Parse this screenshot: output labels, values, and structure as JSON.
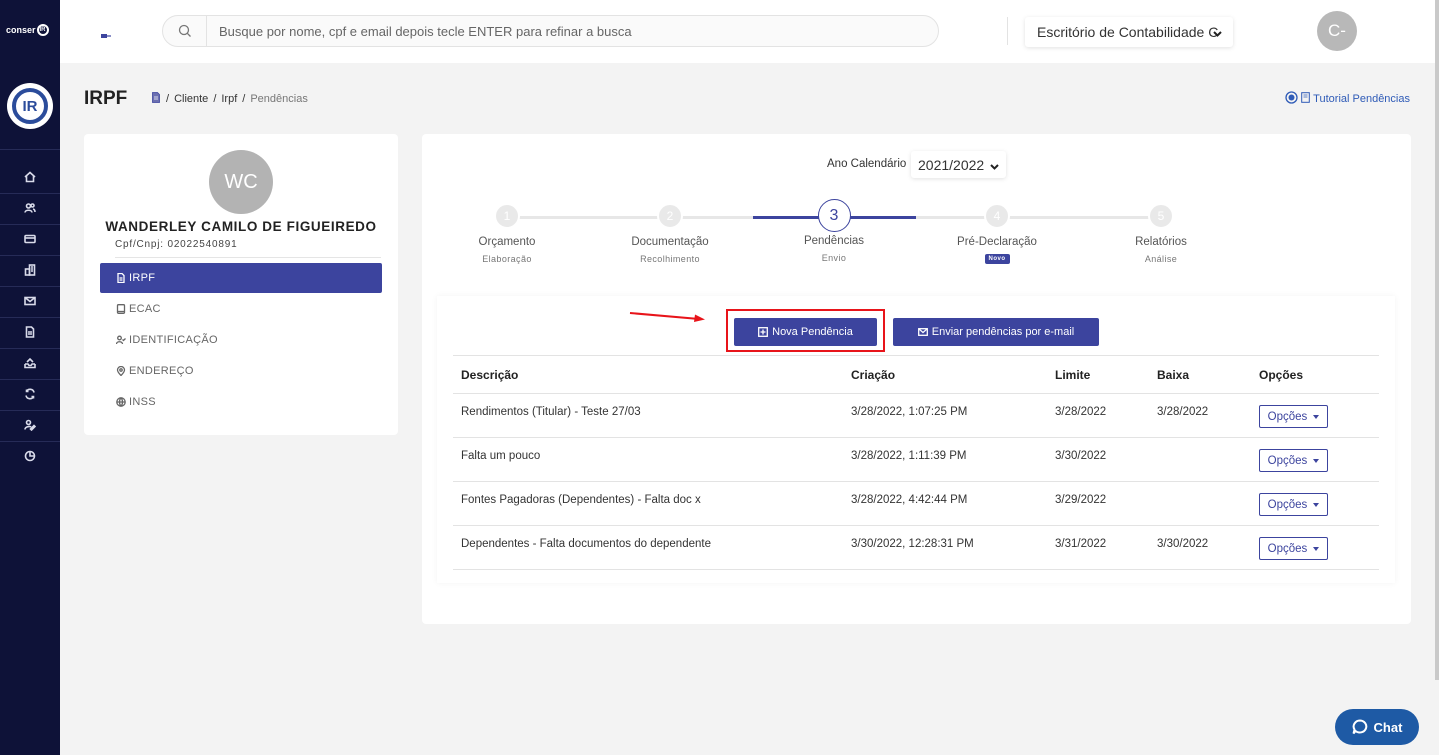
{
  "brand": {
    "small": "conser",
    "small_suffix": "IR",
    "logo_text": "IR"
  },
  "search": {
    "placeholder": "Busque por nome, cpf e email depois tecle ENTER para refinar a busca"
  },
  "office": {
    "selected": "Escritório de Contabilidade C"
  },
  "user": {
    "initials": "C-"
  },
  "page": {
    "title": "IRPF",
    "breadcrumb": [
      "Cliente",
      "Irpf",
      "Pendências"
    ],
    "tutorial_label": "Tutorial Pendências"
  },
  "client": {
    "initials": "WC",
    "name": "WANDERLEY CAMILO DE FIGUEIREDO",
    "doc": "Cpf/Cnpj: 02022540891",
    "menu": [
      {
        "label": "IRPF",
        "icon": "document-icon",
        "active": true
      },
      {
        "label": "ECAC",
        "icon": "tablet-icon",
        "active": false
      },
      {
        "label": "IDENTIFICAÇÃO",
        "icon": "user-check-icon",
        "active": false
      },
      {
        "label": "ENDEREÇO",
        "icon": "location-icon",
        "active": false
      },
      {
        "label": "INSS",
        "icon": "globe-icon",
        "active": false
      }
    ]
  },
  "calendar": {
    "label": "Ano Calendário",
    "year": "2021/2022"
  },
  "steps": [
    {
      "number": "1",
      "title": "Orçamento",
      "sub": "Elaboração"
    },
    {
      "number": "2",
      "title": "Documentação",
      "sub": "Recolhimento"
    },
    {
      "number": "3",
      "title": "Pendências",
      "sub": "Envio",
      "current": true
    },
    {
      "number": "4",
      "title": "Pré-Declaração",
      "badge": "Novo"
    },
    {
      "number": "5",
      "title": "Relatórios",
      "sub": "Análise"
    }
  ],
  "actions": {
    "new_label": "Nova Pendência",
    "email_label": "Enviar pendências por e-mail"
  },
  "table": {
    "headers": [
      "Descrição",
      "Criação",
      "Limite",
      "Baixa",
      "Opções"
    ],
    "rows": [
      {
        "descricao": "Rendimentos (Titular) - Teste 27/03",
        "criacao": "3/28/2022, 1:07:25 PM",
        "limite": "3/28/2022",
        "baixa": "3/28/2022",
        "opcoes": "Opções"
      },
      {
        "descricao": "Falta um pouco",
        "criacao": "3/28/2022, 1:11:39 PM",
        "limite": "3/30/2022",
        "baixa": "",
        "opcoes": "Opções"
      },
      {
        "descricao": "Fontes Pagadoras (Dependentes) - Falta doc x",
        "criacao": "3/28/2022, 4:42:44 PM",
        "limite": "3/29/2022",
        "baixa": "",
        "opcoes": "Opções"
      },
      {
        "descricao": "Dependentes - Falta documentos do dependente",
        "criacao": "3/30/2022, 12:28:31 PM",
        "limite": "3/31/2022",
        "baixa": "3/30/2022",
        "opcoes": "Opções"
      }
    ]
  },
  "chat": {
    "label": "Chat"
  },
  "colors": {
    "primary": "#3c449e",
    "sidebar": "#0e1238",
    "highlight": "#e8141a",
    "chat": "#1e5aa5"
  }
}
